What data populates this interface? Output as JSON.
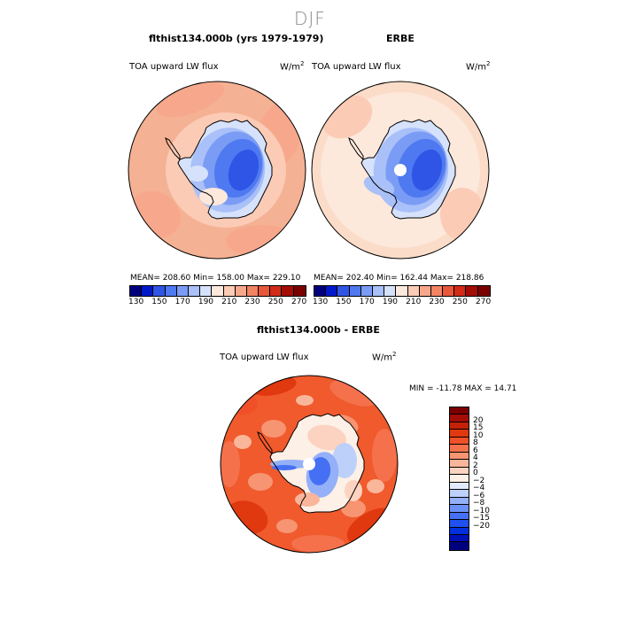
{
  "page": {
    "season": "DJF"
  },
  "panels": [
    {
      "title": "flthist134.000b (yrs 1979-1979)",
      "field": "TOA upward LW flux",
      "unit_base": "W/m",
      "unit_exp": "2",
      "stats": "MEAN= 208.60  Min= 158.00  Max= 229.10"
    },
    {
      "title": "ERBE",
      "field": "TOA upward LW flux",
      "unit_base": "W/m",
      "unit_exp": "2",
      "stats": "MEAN= 202.40  Min= 162.44  Max= 218.86"
    },
    {
      "title": "flthist134.000b - ERBE",
      "field": "TOA upward LW flux",
      "unit_base": "W/m",
      "unit_exp": "2",
      "stats": "MIN = -11.78 MAX =  14.71"
    }
  ],
  "colors": {
    "abs_scale": [
      "#00007f",
      "#0019c8",
      "#2f55e6",
      "#4f79f0",
      "#7a9cf5",
      "#a9c0f8",
      "#d6e2fb",
      "#fde8dc",
      "#fbcbb5",
      "#f7a88c",
      "#f28463",
      "#e8573a",
      "#d22b18",
      "#a30d06",
      "#7a0000"
    ],
    "diff_scale": [
      "#00007f",
      "#0010b8",
      "#0030dd",
      "#2050ee",
      "#4670f3",
      "#6b90f6",
      "#94b0f8",
      "#bcd0fa",
      "#e2ebfc",
      "#fdf0e6",
      "#fbd3c0",
      "#f9b69a",
      "#f79472",
      "#f4714c",
      "#ef5028",
      "#e0380f",
      "#c42208",
      "#a30d06",
      "#7a0000"
    ],
    "ocean_abs_model": "#f5b193",
    "ocean_abs_erbe": "#fbdcc8",
    "ocean_diff": "#f05a2c"
  },
  "chart_data": [
    {
      "type": "heatmap",
      "projection": "south-polar-stereographic",
      "title": "flthist134.000b (yrs 1979-1979)",
      "field": "TOA upward LW flux",
      "units": "W/m^2",
      "stats": {
        "mean": 208.6,
        "min": 158.0,
        "max": 229.1
      },
      "colorbar_levels": [
        130,
        140,
        150,
        160,
        170,
        180,
        190,
        200,
        210,
        220,
        230,
        240,
        250,
        260,
        270
      ],
      "colorbar_labels": [
        "130",
        "150",
        "170",
        "190",
        "210",
        "230",
        "250",
        "270"
      ]
    },
    {
      "type": "heatmap",
      "projection": "south-polar-stereographic",
      "title": "ERBE",
      "field": "TOA upward LW flux",
      "units": "W/m^2",
      "stats": {
        "mean": 202.4,
        "min": 162.44,
        "max": 218.86
      },
      "colorbar_levels": [
        130,
        140,
        150,
        160,
        170,
        180,
        190,
        200,
        210,
        220,
        230,
        240,
        250,
        260,
        270
      ],
      "colorbar_labels": [
        "130",
        "150",
        "170",
        "190",
        "210",
        "230",
        "250",
        "270"
      ]
    },
    {
      "type": "heatmap",
      "projection": "south-polar-stereographic",
      "title": "flthist134.000b - ERBE",
      "field": "TOA upward LW flux",
      "units": "W/m^2",
      "stats": {
        "min": -11.78,
        "max": 14.71
      },
      "colorbar_levels": [
        -20,
        -15,
        -10,
        -8,
        -6,
        -4,
        -2,
        0,
        2,
        4,
        6,
        8,
        10,
        15,
        20
      ],
      "colorbar_labels": [
        "20",
        "15",
        "10",
        "8",
        "6",
        "4",
        "2",
        "0",
        "−2",
        "−4",
        "−6",
        "−8",
        "−10",
        "−15",
        "−20"
      ]
    }
  ]
}
